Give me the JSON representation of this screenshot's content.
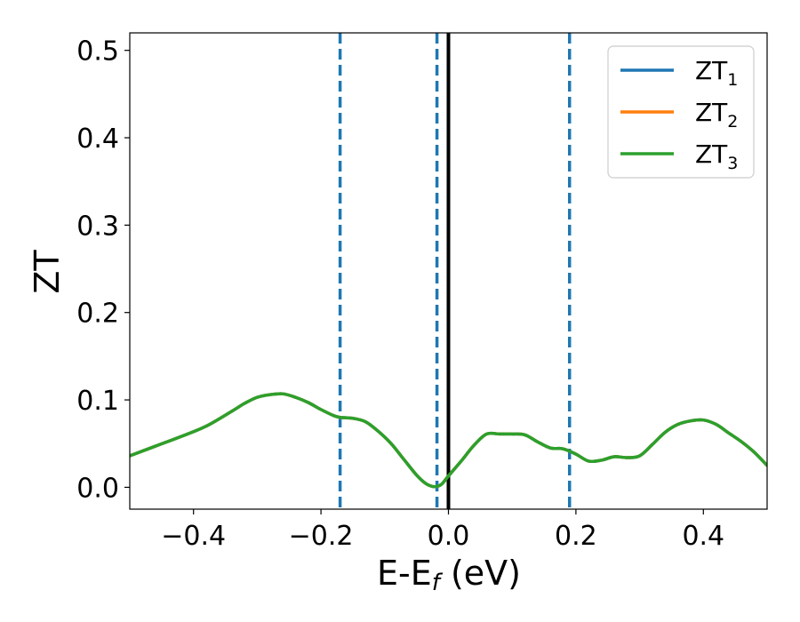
{
  "chart_data": {
    "type": "line",
    "xlabel": "E-E",
    "xlabel_subscript": "f",
    "xlabel_unit": " (eV)",
    "ylabel": "ZT",
    "xlim": [
      -0.5,
      0.5
    ],
    "ylim": [
      -0.025,
      0.52
    ],
    "x_ticks": [
      -0.4,
      -0.2,
      0.0,
      0.2,
      0.4
    ],
    "x_tick_labels": [
      "−0.4",
      "−0.2",
      "0.0",
      "0.2",
      "0.4"
    ],
    "y_ticks": [
      0.0,
      0.1,
      0.2,
      0.3,
      0.4,
      0.5
    ],
    "y_tick_labels": [
      "0.0",
      "0.1",
      "0.2",
      "0.3",
      "0.4",
      "0.5"
    ],
    "grid": false,
    "legend_position": "top-right",
    "colors": {
      "ZT_1": "#1f77b4",
      "ZT_2": "#ff7f0e",
      "ZT_3": "#2ca02c"
    },
    "series": [
      {
        "name": "ZT",
        "subscript": "1",
        "color": "#1f77b4",
        "x": [
          -0.5,
          -0.46,
          -0.42,
          -0.38,
          -0.34,
          -0.32,
          -0.3,
          -0.28,
          -0.26,
          -0.24,
          -0.22,
          -0.2,
          -0.18,
          -0.17,
          -0.15,
          -0.13,
          -0.11,
          -0.09,
          -0.07,
          -0.05,
          -0.035,
          -0.025,
          -0.018,
          -0.01,
          0.0,
          0.02,
          0.04,
          0.06,
          0.08,
          0.1,
          0.12,
          0.14,
          0.16,
          0.18,
          0.2,
          0.22,
          0.24,
          0.26,
          0.28,
          0.3,
          0.32,
          0.34,
          0.36,
          0.38,
          0.4,
          0.42,
          0.44,
          0.46,
          0.48,
          0.5
        ],
        "y": [
          0.036,
          0.047,
          0.058,
          0.07,
          0.087,
          0.096,
          0.103,
          0.106,
          0.107,
          0.103,
          0.097,
          0.089,
          0.082,
          0.08,
          0.079,
          0.075,
          0.064,
          0.05,
          0.032,
          0.014,
          0.004,
          0.001,
          0.001,
          0.004,
          0.013,
          0.03,
          0.048,
          0.061,
          0.061,
          0.061,
          0.06,
          0.052,
          0.045,
          0.044,
          0.038,
          0.03,
          0.031,
          0.035,
          0.034,
          0.036,
          0.049,
          0.063,
          0.072,
          0.076,
          0.077,
          0.072,
          0.062,
          0.052,
          0.04,
          0.025
        ]
      },
      {
        "name": "ZT",
        "subscript": "2",
        "color": "#ff7f0e",
        "x": [
          -0.5,
          -0.46,
          -0.42,
          -0.38,
          -0.34,
          -0.32,
          -0.3,
          -0.28,
          -0.26,
          -0.24,
          -0.22,
          -0.2,
          -0.18,
          -0.17,
          -0.15,
          -0.13,
          -0.11,
          -0.09,
          -0.07,
          -0.05,
          -0.035,
          -0.025,
          -0.018,
          -0.01,
          0.0,
          0.02,
          0.04,
          0.06,
          0.08,
          0.1,
          0.12,
          0.14,
          0.16,
          0.18,
          0.2,
          0.22,
          0.24,
          0.26,
          0.28,
          0.3,
          0.32,
          0.34,
          0.36,
          0.38,
          0.4,
          0.42,
          0.44,
          0.46,
          0.48,
          0.5
        ],
        "y": [
          0.036,
          0.047,
          0.058,
          0.07,
          0.087,
          0.096,
          0.103,
          0.106,
          0.107,
          0.103,
          0.097,
          0.089,
          0.082,
          0.08,
          0.079,
          0.075,
          0.064,
          0.05,
          0.032,
          0.014,
          0.004,
          0.001,
          0.001,
          0.004,
          0.013,
          0.03,
          0.048,
          0.061,
          0.061,
          0.061,
          0.06,
          0.052,
          0.045,
          0.044,
          0.038,
          0.03,
          0.031,
          0.035,
          0.034,
          0.036,
          0.049,
          0.063,
          0.072,
          0.076,
          0.077,
          0.072,
          0.062,
          0.052,
          0.04,
          0.025
        ]
      },
      {
        "name": "ZT",
        "subscript": "3",
        "color": "#2ca02c",
        "x": [
          -0.5,
          -0.46,
          -0.42,
          -0.38,
          -0.34,
          -0.32,
          -0.3,
          -0.28,
          -0.26,
          -0.24,
          -0.22,
          -0.2,
          -0.18,
          -0.17,
          -0.15,
          -0.13,
          -0.11,
          -0.09,
          -0.07,
          -0.05,
          -0.035,
          -0.025,
          -0.018,
          -0.01,
          0.0,
          0.02,
          0.04,
          0.06,
          0.08,
          0.1,
          0.12,
          0.14,
          0.16,
          0.18,
          0.2,
          0.22,
          0.24,
          0.26,
          0.28,
          0.3,
          0.32,
          0.34,
          0.36,
          0.38,
          0.4,
          0.42,
          0.44,
          0.46,
          0.48,
          0.5
        ],
        "y": [
          0.036,
          0.047,
          0.058,
          0.07,
          0.087,
          0.096,
          0.103,
          0.106,
          0.107,
          0.103,
          0.097,
          0.089,
          0.082,
          0.08,
          0.079,
          0.075,
          0.064,
          0.05,
          0.032,
          0.014,
          0.004,
          0.001,
          0.001,
          0.004,
          0.013,
          0.03,
          0.048,
          0.061,
          0.061,
          0.061,
          0.06,
          0.052,
          0.045,
          0.044,
          0.038,
          0.03,
          0.031,
          0.035,
          0.034,
          0.036,
          0.049,
          0.063,
          0.072,
          0.076,
          0.077,
          0.072,
          0.062,
          0.052,
          0.04,
          0.025
        ]
      }
    ],
    "vlines": [
      {
        "x": -0.17,
        "style": "dashed",
        "color": "#1f77b4"
      },
      {
        "x": -0.018,
        "style": "dashed",
        "color": "#1f77b4"
      },
      {
        "x": 0.0,
        "style": "solid",
        "color": "#000000"
      },
      {
        "x": 0.19,
        "style": "dashed",
        "color": "#1f77b4"
      }
    ]
  }
}
